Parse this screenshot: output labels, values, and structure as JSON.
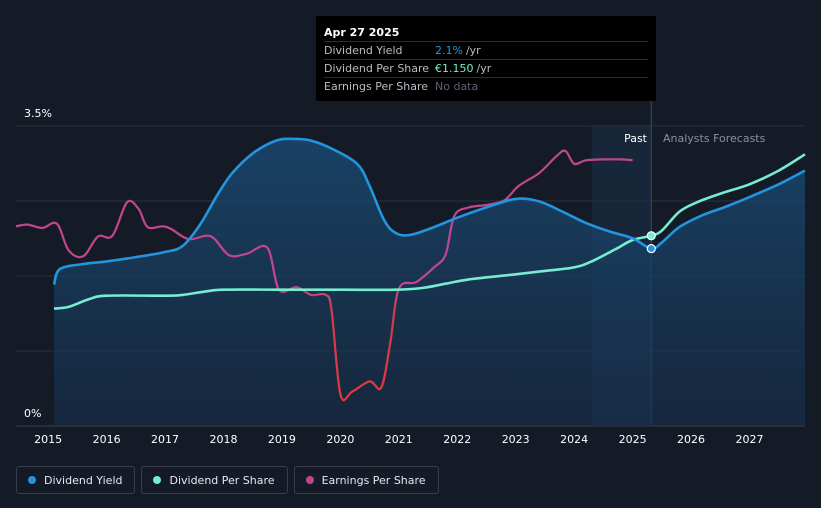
{
  "tooltip": {
    "date": "Apr 27 2025",
    "rows": [
      {
        "label": "Dividend Yield",
        "value": "2.1%",
        "unit": "/yr",
        "color": "#2394df"
      },
      {
        "label": "Dividend Per Share",
        "value": "€1.150",
        "unit": "/yr",
        "color": "#76ecd0"
      },
      {
        "label": "Earnings Per Share",
        "value": "No data",
        "unit": "",
        "color": "#5c6370"
      }
    ]
  },
  "regions": {
    "past": "Past",
    "forecast": "Analysts Forecasts"
  },
  "legend": [
    {
      "label": "Dividend Yield",
      "color": "#2394df"
    },
    {
      "label": "Dividend Per Share",
      "color": "#76ecd0"
    },
    {
      "label": "Earnings Per Share",
      "color": "#c2468f"
    }
  ],
  "chart_data": {
    "type": "line",
    "xlim": [
      2014.45,
      2027.95
    ],
    "ylim": [
      0,
      3.5
    ],
    "y_ticks": [
      {
        "v": 3.5,
        "label": "3.5%"
      },
      {
        "v": 0,
        "label": "0%"
      }
    ],
    "x_ticks": [
      "2015",
      "2016",
      "2017",
      "2018",
      "2019",
      "2020",
      "2021",
      "2022",
      "2023",
      "2024",
      "2025",
      "2026",
      "2027"
    ],
    "current_x": 2025.32,
    "forecast_band_start": 2024.3,
    "grid": true,
    "series": [
      {
        "name": "Dividend Yield",
        "color": "#2394df",
        "fill": true,
        "points": [
          [
            2015.1,
            1.65
          ],
          [
            2015.2,
            1.83
          ],
          [
            2015.6,
            1.89
          ],
          [
            2016.0,
            1.92
          ],
          [
            2016.5,
            1.97
          ],
          [
            2017.0,
            2.03
          ],
          [
            2017.3,
            2.1
          ],
          [
            2017.6,
            2.35
          ],
          [
            2017.9,
            2.7
          ],
          [
            2018.15,
            2.95
          ],
          [
            2018.5,
            3.18
          ],
          [
            2018.9,
            3.33
          ],
          [
            2019.2,
            3.35
          ],
          [
            2019.5,
            3.33
          ],
          [
            2019.9,
            3.22
          ],
          [
            2020.3,
            3.05
          ],
          [
            2020.5,
            2.8
          ],
          [
            2020.75,
            2.4
          ],
          [
            2020.95,
            2.25
          ],
          [
            2021.2,
            2.23
          ],
          [
            2021.6,
            2.32
          ],
          [
            2022.0,
            2.43
          ],
          [
            2022.5,
            2.55
          ],
          [
            2023.0,
            2.65
          ],
          [
            2023.4,
            2.62
          ],
          [
            2023.8,
            2.5
          ],
          [
            2024.2,
            2.37
          ],
          [
            2024.6,
            2.27
          ],
          [
            2025.0,
            2.19
          ],
          [
            2025.32,
            2.07
          ],
          [
            2025.5,
            2.14
          ],
          [
            2025.8,
            2.32
          ],
          [
            2026.2,
            2.46
          ],
          [
            2026.6,
            2.56
          ],
          [
            2027.0,
            2.67
          ],
          [
            2027.5,
            2.82
          ],
          [
            2027.95,
            2.98
          ]
        ]
      },
      {
        "name": "Dividend Per Share",
        "color": "#76ecd0",
        "fill": false,
        "points": [
          [
            2015.1,
            1.37
          ],
          [
            2015.35,
            1.39
          ],
          [
            2015.7,
            1.48
          ],
          [
            2016.0,
            1.52
          ],
          [
            2017.0,
            1.52
          ],
          [
            2017.3,
            1.53
          ],
          [
            2017.7,
            1.57
          ],
          [
            2018.0,
            1.59
          ],
          [
            2019.0,
            1.59
          ],
          [
            2020.0,
            1.59
          ],
          [
            2020.95,
            1.59
          ],
          [
            2021.4,
            1.61
          ],
          [
            2021.8,
            1.66
          ],
          [
            2022.2,
            1.71
          ],
          [
            2023.0,
            1.77
          ],
          [
            2023.5,
            1.81
          ],
          [
            2024.0,
            1.85
          ],
          [
            2024.3,
            1.92
          ],
          [
            2024.7,
            2.06
          ],
          [
            2025.0,
            2.17
          ],
          [
            2025.32,
            2.22
          ],
          [
            2025.5,
            2.28
          ],
          [
            2025.8,
            2.5
          ],
          [
            2026.1,
            2.61
          ],
          [
            2026.5,
            2.71
          ],
          [
            2027.0,
            2.82
          ],
          [
            2027.5,
            2.98
          ],
          [
            2027.95,
            3.17
          ]
        ]
      },
      {
        "name": "Earnings Per Share",
        "color": "#c2468f",
        "fill": false,
        "points": [
          [
            2014.45,
            2.33
          ],
          [
            2014.65,
            2.35
          ],
          [
            2014.9,
            2.31
          ],
          [
            2015.15,
            2.36
          ],
          [
            2015.35,
            2.05
          ],
          [
            2015.6,
            1.98
          ],
          [
            2015.85,
            2.21
          ],
          [
            2016.1,
            2.22
          ],
          [
            2016.35,
            2.61
          ],
          [
            2016.55,
            2.53
          ],
          [
            2016.7,
            2.32
          ],
          [
            2016.95,
            2.33
          ],
          [
            2017.1,
            2.3
          ],
          [
            2017.4,
            2.18
          ],
          [
            2017.7,
            2.22
          ],
          [
            2017.85,
            2.18
          ],
          [
            2018.1,
            1.99
          ],
          [
            2018.4,
            2.01
          ],
          [
            2018.75,
            2.08
          ],
          [
            2018.95,
            1.59
          ],
          [
            2019.25,
            1.62
          ],
          [
            2019.5,
            1.53
          ],
          [
            2019.75,
            1.53
          ],
          [
            2019.85,
            1.35
          ],
          [
            2020.0,
            0.37
          ],
          [
            2020.2,
            0.4
          ],
          [
            2020.5,
            0.52
          ],
          [
            2020.7,
            0.45
          ],
          [
            2020.85,
            0.95
          ],
          [
            2021.0,
            1.6
          ],
          [
            2021.3,
            1.68
          ],
          [
            2021.6,
            1.85
          ],
          [
            2021.8,
            2.0
          ],
          [
            2021.95,
            2.45
          ],
          [
            2022.2,
            2.55
          ],
          [
            2022.5,
            2.58
          ],
          [
            2022.8,
            2.63
          ],
          [
            2023.05,
            2.8
          ],
          [
            2023.4,
            2.95
          ],
          [
            2023.7,
            3.15
          ],
          [
            2023.85,
            3.21
          ],
          [
            2024.0,
            3.06
          ],
          [
            2024.2,
            3.1
          ],
          [
            2024.5,
            3.11
          ],
          [
            2024.8,
            3.11
          ],
          [
            2025.0,
            3.1
          ]
        ]
      }
    ],
    "markers": [
      {
        "series": "Dividend Yield",
        "x": 2025.32,
        "y": 2.07
      },
      {
        "series": "Dividend Per Share",
        "x": 2025.32,
        "y": 2.22
      }
    ]
  }
}
